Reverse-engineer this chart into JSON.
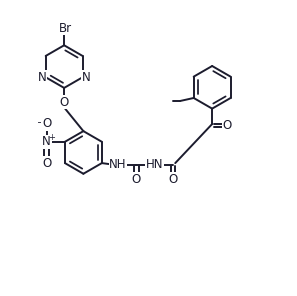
{
  "bg_color": "#ffffff",
  "bond_color": "#1c1c2e",
  "text_color": "#1c1c2e",
  "line_width": 1.4,
  "font_size": 8.5,
  "figsize": [
    2.97,
    2.96
  ],
  "dpi": 100,
  "xlim": [
    0,
    10
  ],
  "ylim": [
    0,
    10
  ]
}
